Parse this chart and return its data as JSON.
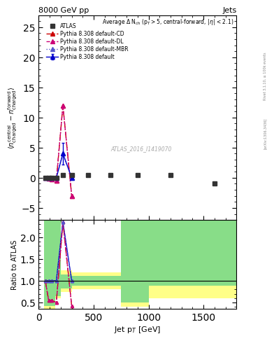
{
  "title_top": "8000 GeV pp",
  "title_right": "Jets",
  "annotation": "Average Δ N$_{ch}$ (p$_T$>5, central-forward, |η| < 2.1)",
  "watermark": "ATLAS_2016_I1419070",
  "ylabel_main": "$\\langle n^{\\rm central}_{\\rm charged} - n^{\\rm forward}_{\\rm charged}\\rangle$",
  "ylabel_ratio": "Ratio to ATLAS",
  "xlabel": "Jet p$_{T}$ [GeV]",
  "ylim_main": [
    -7,
    27
  ],
  "ylim_ratio": [
    0.35,
    2.4
  ],
  "xlim": [
    0,
    1800
  ],
  "atlas_x": [
    60,
    90,
    120,
    160,
    220,
    300,
    450,
    650,
    900,
    1200,
    1600
  ],
  "atlas_y": [
    0.0,
    0.0,
    0.0,
    0.0,
    0.5,
    0.5,
    0.5,
    0.5,
    0.5,
    0.5,
    -1.0
  ],
  "pythia_default_x": [
    60,
    90,
    120,
    160,
    220,
    300
  ],
  "pythia_default_y": [
    0.0,
    0.0,
    0.0,
    0.0,
    4.0,
    0.0
  ],
  "pythia_default_yerr": [
    0.1,
    0.1,
    0.1,
    0.15,
    1.8,
    0.1
  ],
  "pythia_cd_x": [
    60,
    90,
    120,
    160,
    220,
    300
  ],
  "pythia_cd_y": [
    0.0,
    -0.1,
    -0.3,
    -0.5,
    12.0,
    -3.0
  ],
  "pythia_dl_x": [
    60,
    90,
    120,
    160,
    220,
    300
  ],
  "pythia_dl_y": [
    0.0,
    -0.1,
    -0.3,
    -0.5,
    12.0,
    -3.0
  ],
  "pythia_mbr_x": [
    60,
    90,
    120,
    160,
    220,
    300
  ],
  "pythia_mbr_y": [
    0.0,
    0.0,
    0.0,
    0.0,
    4.0,
    0.0
  ],
  "ratio_x_edges": [
    50,
    80,
    110,
    150,
    200,
    300,
    500,
    750,
    1000,
    1250,
    1600,
    1800
  ],
  "ratio_yellow_lo": [
    0.35,
    0.35,
    0.35,
    0.6,
    0.75,
    0.8,
    0.8,
    0.4,
    0.6,
    0.6,
    0.6,
    0.6
  ],
  "ratio_yellow_hi": [
    2.4,
    2.4,
    2.4,
    2.4,
    1.25,
    1.2,
    1.2,
    2.4,
    2.4,
    2.4,
    2.4,
    2.4
  ],
  "ratio_green_lo": [
    0.42,
    0.42,
    0.42,
    0.65,
    0.82,
    0.88,
    0.88,
    0.5,
    0.88,
    0.88,
    0.88,
    0.88
  ],
  "ratio_green_hi": [
    2.4,
    2.4,
    2.4,
    2.4,
    1.15,
    1.12,
    1.12,
    2.4,
    2.4,
    2.4,
    2.4,
    2.4
  ],
  "ratio_default_x": [
    60,
    90,
    120,
    160,
    220,
    300
  ],
  "ratio_default_y": [
    1.0,
    1.0,
    1.0,
    1.0,
    2.35,
    1.0
  ],
  "ratio_cd_x": [
    60,
    90,
    120,
    160,
    220,
    300
  ],
  "ratio_cd_y": [
    1.0,
    0.55,
    0.55,
    0.5,
    2.35,
    0.42
  ],
  "ratio_dl_x": [
    60,
    90,
    120,
    160,
    220,
    300
  ],
  "ratio_dl_y": [
    1.0,
    0.55,
    0.55,
    0.5,
    2.35,
    0.42
  ],
  "ratio_mbr_x": [
    60,
    90,
    120,
    160,
    220,
    300
  ],
  "ratio_mbr_y": [
    1.0,
    1.0,
    1.0,
    1.0,
    2.35,
    1.0
  ],
  "color_atlas": "#000000",
  "color_default": "#0000cc",
  "color_cd": "#cc0000",
  "color_dl": "#cc0077",
  "color_mbr": "#5555cc",
  "bg_color": "#ffffff",
  "side_label": "Rivet 3.1.10, ≥ 100k events",
  "side_label2": "[arXiv:1306.3436]",
  "yticks_main": [
    -5,
    0,
    5,
    10,
    15,
    20,
    25
  ],
  "yticks_ratio": [
    0.5,
    1.0,
    1.5,
    2.0
  ],
  "xticks": [
    0,
    500,
    1000,
    1500
  ]
}
